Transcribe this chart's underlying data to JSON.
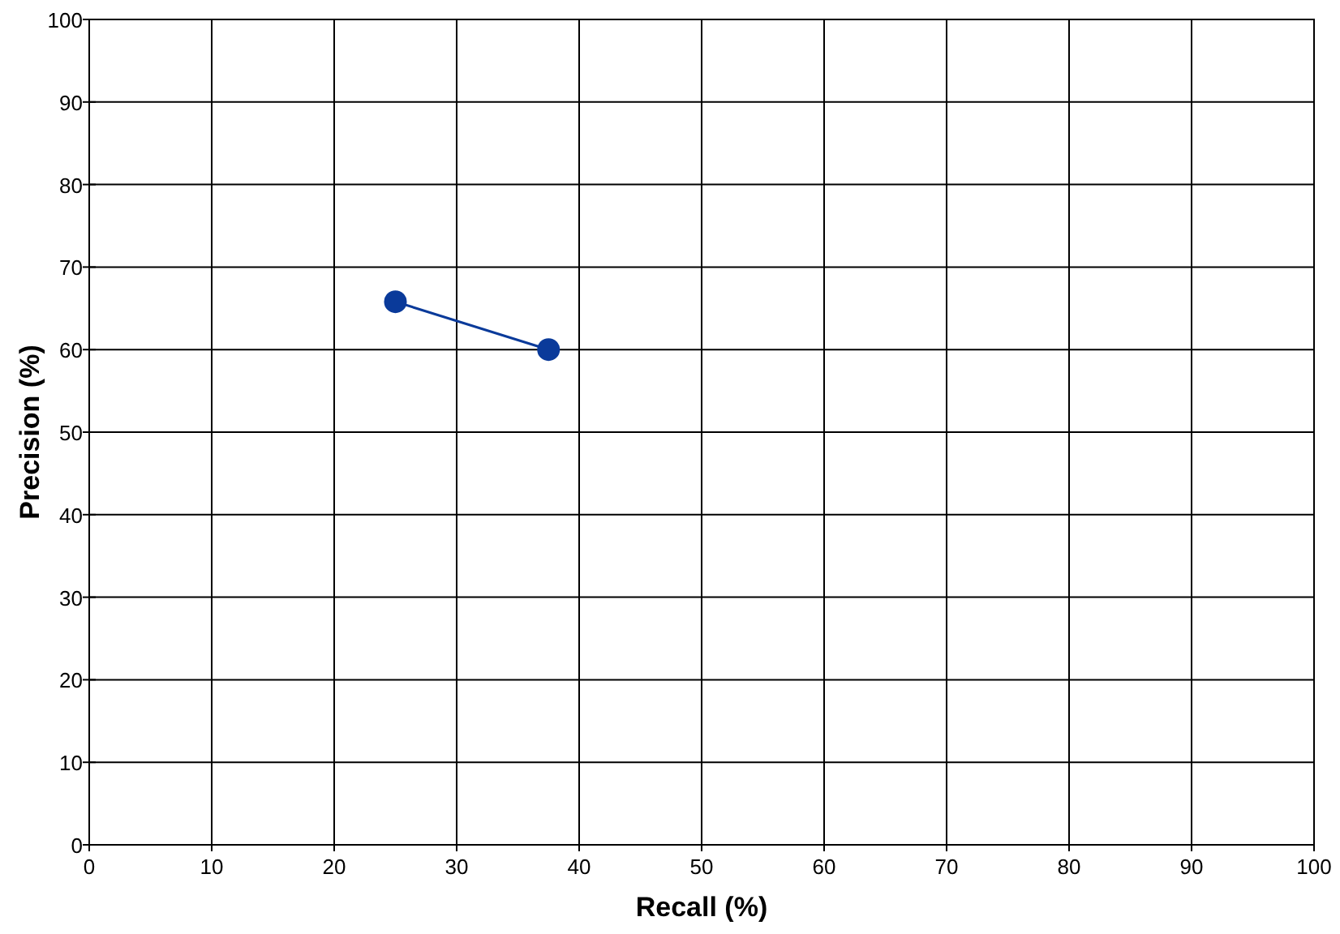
{
  "chart_data": {
    "type": "line",
    "xlabel": "Recall (%)",
    "ylabel": "Precision (%)",
    "x": [
      25,
      37.5
    ],
    "series": [
      {
        "color": "#0a3a9a",
        "values": [
          65.8,
          60
        ]
      }
    ],
    "xlim": [
      0,
      100
    ],
    "ylim": [
      0,
      100
    ],
    "xticks": [
      0,
      10,
      20,
      30,
      40,
      50,
      60,
      70,
      80,
      90,
      100
    ],
    "yticks": [
      0,
      10,
      20,
      30,
      40,
      50,
      60,
      70,
      80,
      90,
      100
    ],
    "grid": true,
    "marker": "circle",
    "line_style": "solid"
  }
}
